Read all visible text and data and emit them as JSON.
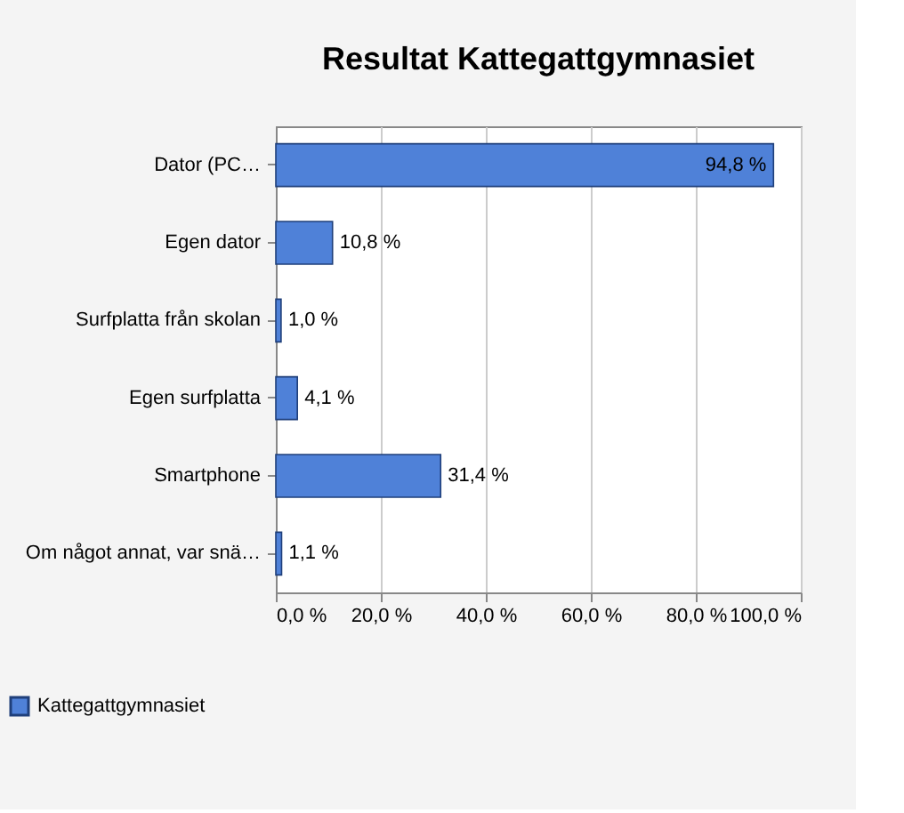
{
  "chart_data": {
    "type": "bar",
    "orientation": "horizontal",
    "title": "Resultat Kattegattgymnasiet",
    "categories": [
      "Dator (PC…",
      "Egen dator",
      "Surfplatta från skolan",
      "Egen surfplatta",
      "Smartphone",
      "Om något annat,  var snä…"
    ],
    "series": [
      {
        "name": "Kattegattgymnasiet",
        "color": "#4f81d8",
        "values": [
          94.8,
          10.8,
          1.0,
          4.1,
          31.4,
          1.1
        ],
        "value_labels": [
          "94,8 %",
          "10,8 %",
          "1,0 %",
          "4,1 %",
          "31,4 %",
          "1,1 %"
        ]
      }
    ],
    "xlim": [
      0,
      100
    ],
    "xticks": [
      {
        "value": 0,
        "label": "0,0 %"
      },
      {
        "value": 20,
        "label": "20,0 %"
      },
      {
        "value": 40,
        "label": "40,0 %"
      },
      {
        "value": 60,
        "label": "60,0 %"
      },
      {
        "value": 80,
        "label": "80,0 %"
      },
      {
        "value": 100,
        "label": "100,0 %"
      }
    ],
    "grid": "x",
    "legend": "bottom left"
  }
}
